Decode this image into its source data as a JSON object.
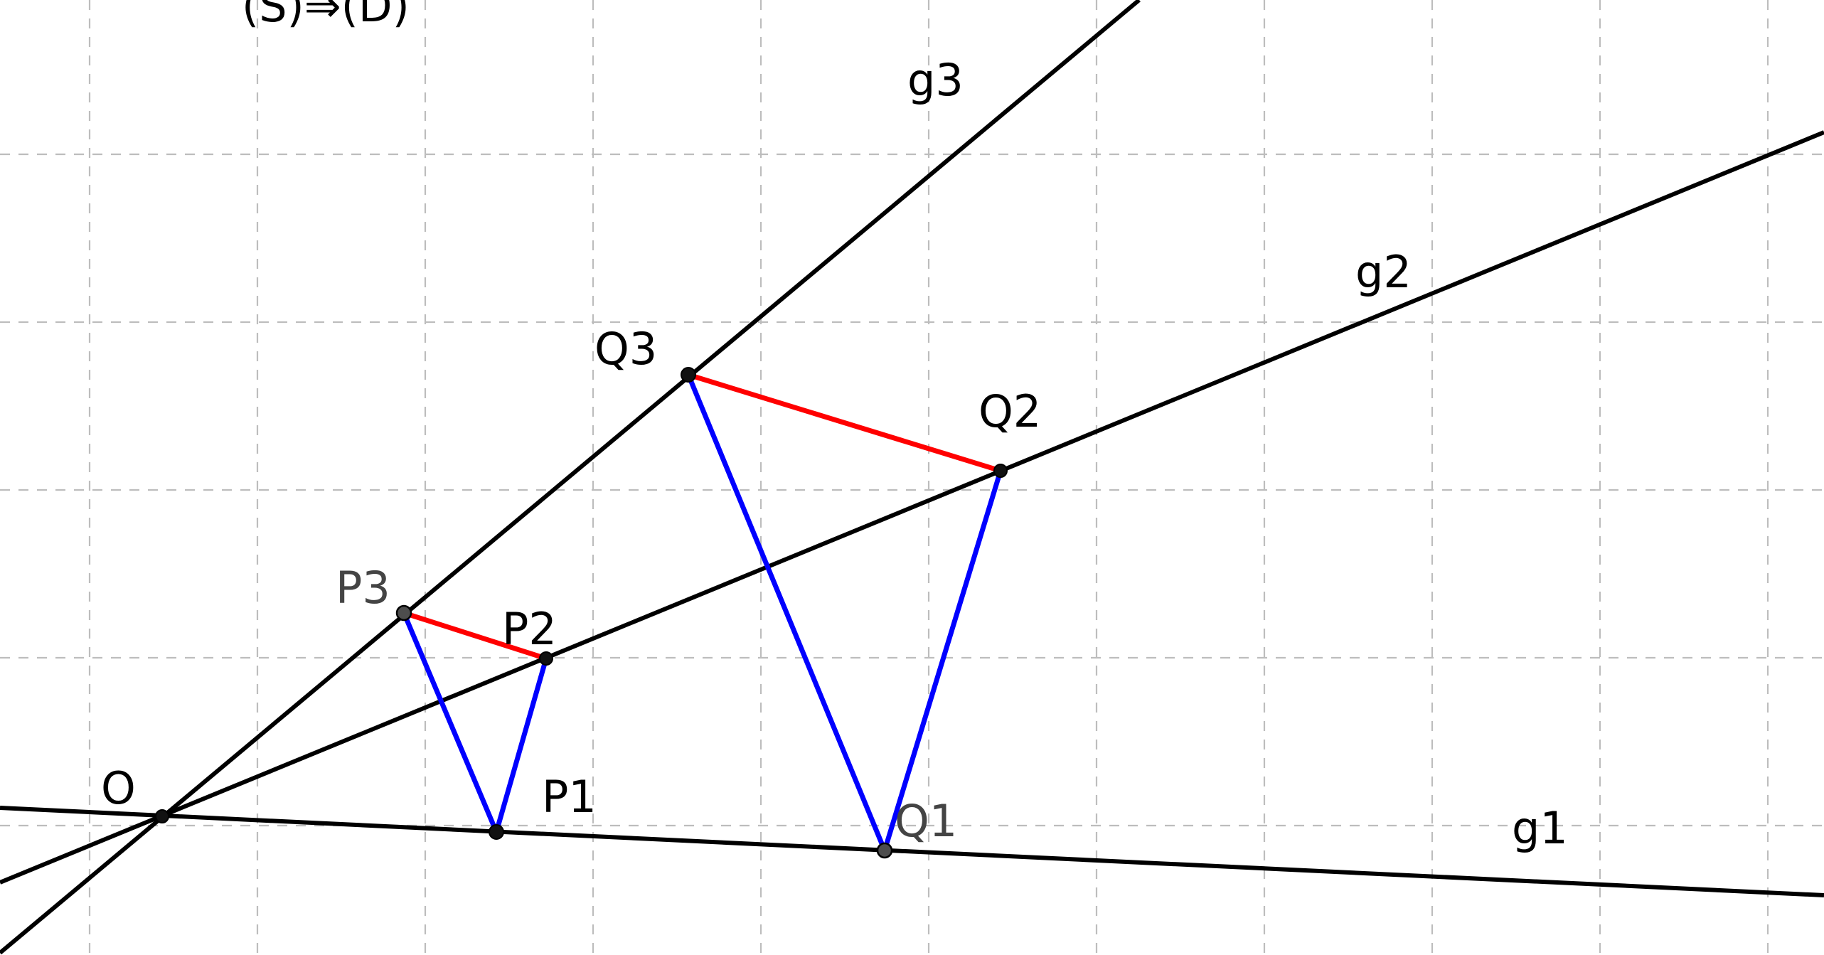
{
  "caption": "(S)⇒(D)",
  "lines": {
    "g1": "g1",
    "g2": "g2",
    "g3": "g3"
  },
  "points": {
    "O": "O",
    "P1": "P1",
    "P2": "P2",
    "P3": "P3",
    "Q1": "Q1",
    "Q2": "Q2",
    "Q3": "Q3"
  },
  "colors": {
    "lines": "#000000",
    "parallel_segments": "#ff0000",
    "triangle_sides": "#0000ff",
    "grid": "#bdbdbd"
  }
}
